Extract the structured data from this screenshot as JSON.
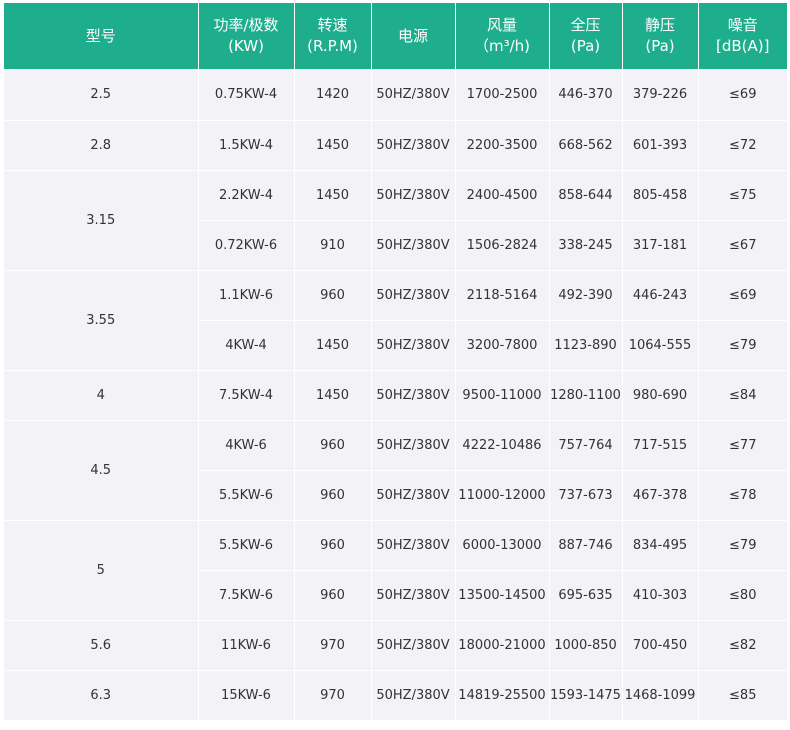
{
  "headers": [
    {
      "l1": "型号",
      "l2": ""
    },
    {
      "l1": "功率/极数",
      "l2": "(KW)"
    },
    {
      "l1": "转速",
      "l2": "(R.P.M)"
    },
    {
      "l1": "电源",
      "l2": ""
    },
    {
      "l1": "风量",
      "l2": "（m³/h)"
    },
    {
      "l1": "全压",
      "l2": "(Pa)"
    },
    {
      "l1": "静压",
      "l2": "(Pa)"
    },
    {
      "l1": "噪音",
      "l2": "[dB(A)]"
    }
  ],
  "rows": [
    {
      "model": "2.5",
      "power": "0.75KW-4",
      "rpm": "1420",
      "supply": "50HZ/380V",
      "airflow": "1700-2500",
      "total_pressure": "446-370",
      "static_pressure": "379-226",
      "noise": "≤69"
    },
    {
      "model": "2.8",
      "power": "1.5KW-4",
      "rpm": "1450",
      "supply": "50HZ/380V",
      "airflow": "2200-3500",
      "total_pressure": "668-562",
      "static_pressure": "601-393",
      "noise": "≤72"
    },
    {
      "model": "3.15",
      "power": "2.2KW-4",
      "rpm": "1450",
      "supply": "50HZ/380V",
      "airflow": "2400-4500",
      "total_pressure": "858-644",
      "static_pressure": "805-458",
      "noise": "≤75"
    },
    {
      "model": "",
      "power": "0.72KW-6",
      "rpm": "910",
      "supply": "50HZ/380V",
      "airflow": "1506-2824",
      "total_pressure": "338-245",
      "static_pressure": "317-181",
      "noise": "≤67"
    },
    {
      "model": "3.55",
      "power": "1.1KW-6",
      "rpm": "960",
      "supply": "50HZ/380V",
      "airflow": "2118-5164",
      "total_pressure": "492-390",
      "static_pressure": "446-243",
      "noise": "≤69"
    },
    {
      "model": "",
      "power": "4KW-4",
      "rpm": "1450",
      "supply": "50HZ/380V",
      "airflow": "3200-7800",
      "total_pressure": "1123-890",
      "static_pressure": "1064-555",
      "noise": "≤79"
    },
    {
      "model": "4",
      "power": "7.5KW-4",
      "rpm": "1450",
      "supply": "50HZ/380V",
      "airflow": "9500-11000",
      "total_pressure": "1280-1100",
      "static_pressure": "980-690",
      "noise": "≤84"
    },
    {
      "model": "4.5",
      "power": "4KW-6",
      "rpm": "960",
      "supply": "50HZ/380V",
      "airflow": "4222-10486",
      "total_pressure": "757-764",
      "static_pressure": "717-515",
      "noise": "≤77"
    },
    {
      "model": "",
      "power": "5.5KW-6",
      "rpm": "960",
      "supply": "50HZ/380V",
      "airflow": "11000-12000",
      "total_pressure": "737-673",
      "static_pressure": "467-378",
      "noise": "≤78"
    },
    {
      "model": "5",
      "power": "5.5KW-6",
      "rpm": "960",
      "supply": "50HZ/380V",
      "airflow": "6000-13000",
      "total_pressure": "887-746",
      "static_pressure": "834-495",
      "noise": "≤79"
    },
    {
      "model": "",
      "power": "7.5KW-6",
      "rpm": "960",
      "supply": "50HZ/380V",
      "airflow": "13500-14500",
      "total_pressure": "695-635",
      "static_pressure": "410-303",
      "noise": "≤80"
    },
    {
      "model": "5.6",
      "power": "11KW-6",
      "rpm": "970",
      "supply": "50HZ/380V",
      "airflow": "18000-21000",
      "total_pressure": "1000-850",
      "static_pressure": "700-450",
      "noise": "≤82"
    },
    {
      "model": "6.3",
      "power": "15KW-6",
      "rpm": "970",
      "supply": "50HZ/380V",
      "airflow": "14819-25500",
      "total_pressure": "1593-1475",
      "static_pressure": "1468-1099",
      "noise": "≤85"
    }
  ],
  "colors": {
    "header_bg": "#1fae8d",
    "header_text": "#ffffff",
    "cell_bg": "#f3f2f7",
    "cell_text": "#333333"
  }
}
